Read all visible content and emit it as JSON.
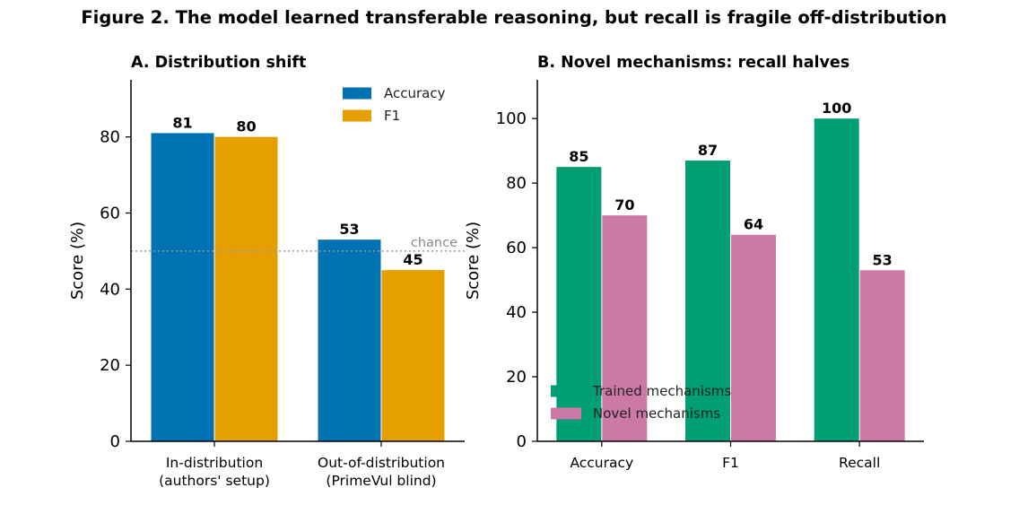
{
  "figure_title": "Figure 2.  The model learned transferable reasoning, but recall is fragile off-distribution",
  "chart_data": [
    {
      "type": "bar",
      "title": "A. Distribution shift",
      "ylabel": "Score (%)",
      "xlabel": "",
      "ylim": [
        0,
        95
      ],
      "yticks": [
        0,
        20,
        40,
        60,
        80
      ],
      "categories": [
        [
          "In-distribution",
          "(authors' setup)"
        ],
        [
          "Out-of-distribution",
          "(PrimeVul blind)"
        ]
      ],
      "series": [
        {
          "name": "Accuracy",
          "color": "#0072b2",
          "values": [
            81,
            53
          ],
          "labels": [
            "81",
            "53"
          ]
        },
        {
          "name": "F1",
          "color": "#e69f00",
          "values": [
            80,
            45
          ],
          "labels": [
            "80",
            "45"
          ]
        }
      ],
      "reference_line": {
        "y": 50,
        "label": "chance",
        "style": "dotted",
        "color": "#999999"
      },
      "legend_position": "top-right",
      "grid": false
    },
    {
      "type": "bar",
      "title": "B. Novel mechanisms: recall halves",
      "ylabel": "Score (%)",
      "xlabel": "",
      "ylim": [
        0,
        112
      ],
      "yticks": [
        0,
        20,
        40,
        60,
        80,
        100
      ],
      "categories": [
        [
          "Accuracy"
        ],
        [
          "F1"
        ],
        [
          "Recall"
        ]
      ],
      "series": [
        {
          "name": "Trained mechanisms",
          "color": "#009e73",
          "values": [
            85,
            87,
            100
          ],
          "labels": [
            "85",
            "87",
            "100"
          ]
        },
        {
          "name": "Novel mechanisms",
          "color": "#cc79a7",
          "values": [
            70,
            64,
            53
          ],
          "labels": [
            "70",
            "64",
            "53"
          ]
        }
      ],
      "legend_position": "lower-left",
      "grid": false
    }
  ]
}
